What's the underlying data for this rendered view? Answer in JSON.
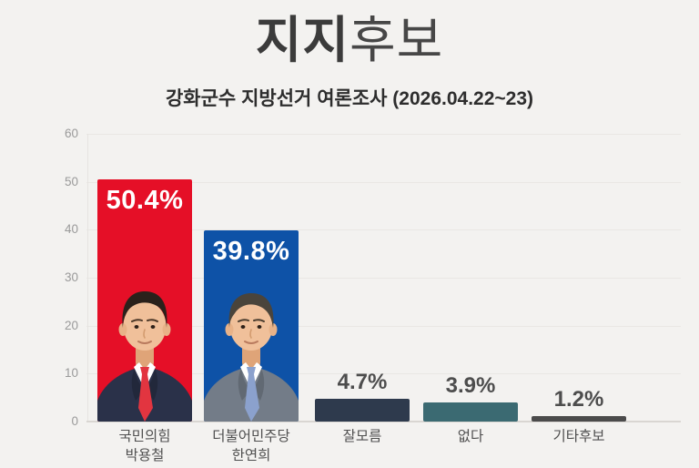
{
  "header": {
    "title_bold": "지지",
    "title_regular": "후보",
    "subtitle": "강화군수 지방선거 여론조사 (2026.04.22~23)"
  },
  "chart_data": {
    "type": "bar",
    "title": "지지후보",
    "subtitle": "강화군수 지방선거 여론조사 (2026.04.22~23)",
    "xlabel": "",
    "ylabel": "",
    "ylim": [
      0,
      60
    ],
    "yticks": [
      0,
      10,
      20,
      30,
      40,
      50,
      60
    ],
    "ytick_labels": [
      "0",
      "10",
      "20",
      "30",
      "40",
      "50",
      "60"
    ],
    "grid": true,
    "legend": false,
    "categories": [
      "국민의힘 박용철",
      "더불어민주당 한연희",
      "잘모름",
      "없다",
      "기타후보"
    ],
    "values": [
      50.4,
      39.8,
      4.7,
      3.9,
      1.2
    ],
    "bars": [
      {
        "party": "국민의힘",
        "name": "박용철",
        "value": 50.4,
        "value_label": "50.4%",
        "color": "#e50f27",
        "value_label_color": "#ffffff",
        "photo": "candidate-park-yongchul"
      },
      {
        "party": "더불어민주당",
        "name": "한연희",
        "value": 39.8,
        "value_label": "39.8%",
        "color": "#0e52a7",
        "value_label_color": "#ffffff",
        "photo": "candidate-han-yeonhui"
      },
      {
        "label": "잘모름",
        "value": 4.7,
        "value_label": "4.7%",
        "color": "#2e3a4d",
        "value_label_color": "#4d4d4d"
      },
      {
        "label": "없다",
        "value": 3.9,
        "value_label": "3.9%",
        "color": "#3b6a72",
        "value_label_color": "#4d4d4d"
      },
      {
        "label": "기타후보",
        "value": 1.2,
        "value_label": "1.2%",
        "color": "#4b4b4b",
        "value_label_color": "#4d4d4d"
      }
    ]
  },
  "colors": {
    "background": "#f3f2f0",
    "title": "#3b3b3b",
    "subtitle": "#2d2d2d",
    "axis_tick": "#9a9a9a",
    "category_label": "#4f4f4f",
    "gridline": "#e9e7e4",
    "baseline": "#d9d6d2",
    "bar_red": "#e50f27",
    "bar_blue": "#0e52a7",
    "bar_slate": "#2e3a4d",
    "bar_teal": "#3b6a72",
    "bar_gray": "#4b4b4b"
  }
}
